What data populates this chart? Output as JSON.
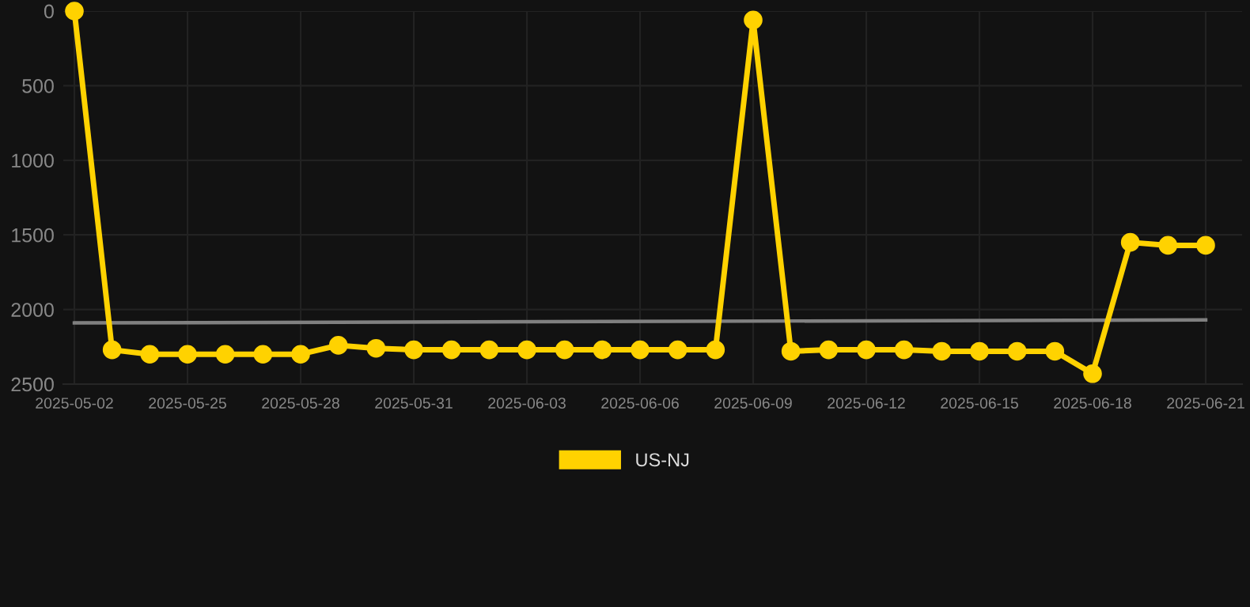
{
  "chart_data": {
    "type": "line",
    "categories": [
      "2025-05-02",
      null,
      null,
      "2025-05-25",
      null,
      null,
      "2025-05-28",
      null,
      null,
      "2025-05-31",
      null,
      null,
      "2025-06-03",
      null,
      null,
      "2025-06-06",
      null,
      null,
      "2025-06-09",
      null,
      null,
      "2025-06-12",
      null,
      null,
      "2025-06-15",
      null,
      null,
      "2025-06-18",
      null,
      null,
      "2025-06-21"
    ],
    "series": [
      {
        "name": "US-NJ",
        "color": "#ffd200",
        "marker": "circle",
        "values": [
          0,
          2270,
          2300,
          2300,
          2300,
          2300,
          2300,
          2240,
          2260,
          2270,
          2270,
          2270,
          2270,
          2270,
          2270,
          2270,
          2270,
          2270,
          60,
          2280,
          2270,
          2270,
          2270,
          2280,
          2280,
          2280,
          2280,
          2430,
          1550,
          1570,
          1570
        ]
      },
      {
        "type": "line",
        "color": "#808080",
        "marker": "none",
        "values": [
          2090,
          null,
          null,
          null,
          null,
          null,
          null,
          null,
          null,
          null,
          null,
          null,
          null,
          null,
          null,
          null,
          null,
          null,
          null,
          null,
          null,
          null,
          null,
          null,
          null,
          null,
          null,
          null,
          null,
          null,
          2070
        ]
      }
    ],
    "ylim": [
      2500,
      0
    ],
    "yticks": [
      0,
      500,
      1000,
      1500,
      2000,
      2500
    ],
    "grid": true,
    "legend": "bottom",
    "line_style": "solid"
  }
}
